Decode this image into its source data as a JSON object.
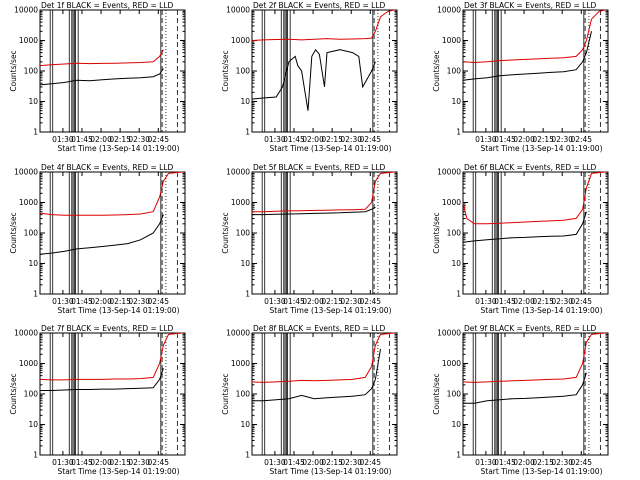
{
  "colors": {
    "events": "#000000",
    "lld": "#dd0000",
    "axes": "#000000",
    "background": "#ffffff"
  },
  "common": {
    "ylabel": "Counts/sec",
    "xlabel": "Start Time (13-Sep-14 01:19:00)",
    "x_range_minutes": [
      71,
      185
    ],
    "y_range": [
      1,
      10000
    ],
    "y_scale": "log",
    "x_ticks": [
      "01:30",
      "01:45",
      "02:00",
      "02:15",
      "02:30",
      "02:45"
    ],
    "y_ticks": [
      "1",
      "10",
      "100",
      "1000",
      "10000"
    ],
    "markers": {
      "solid": [
        79,
        81,
        94,
        96,
        97,
        98,
        99,
        101,
        166
      ],
      "dashed": [
        167,
        179
      ],
      "dash_dot": [
        170
      ]
    }
  },
  "chart_data": [
    {
      "type": "line",
      "title": "Det 1f BLACK = Events, RED = LLD",
      "series": [
        {
          "name": "Events",
          "color": "#000000",
          "values": [
            [
              71,
              35
            ],
            [
              80,
              38
            ],
            [
              90,
              42
            ],
            [
              100,
              50
            ],
            [
              110,
              48
            ],
            [
              120,
              52
            ],
            [
              130,
              55
            ],
            [
              140,
              58
            ],
            [
              150,
              60
            ],
            [
              160,
              65
            ],
            [
              165,
              80
            ],
            [
              168,
              120
            ]
          ]
        },
        {
          "name": "LLD",
          "color": "#dd0000",
          "values": [
            [
              71,
              150
            ],
            [
              80,
              160
            ],
            [
              90,
              170
            ],
            [
              100,
              180
            ],
            [
              110,
              175
            ],
            [
              120,
              178
            ],
            [
              130,
              180
            ],
            [
              140,
              185
            ],
            [
              150,
              190
            ],
            [
              160,
              200
            ],
            [
              165,
              300
            ],
            [
              168,
              500
            ]
          ]
        }
      ]
    },
    {
      "type": "line",
      "title": "Det 2f BLACK = Events, RED = LLD",
      "series": [
        {
          "name": "Events",
          "color": "#000000",
          "values": [
            [
              71,
              12
            ],
            [
              80,
              13
            ],
            [
              90,
              14
            ],
            [
              95,
              30
            ],
            [
              100,
              200
            ],
            [
              105,
              300
            ],
            [
              107,
              150
            ],
            [
              110,
              100
            ],
            [
              115,
              5
            ],
            [
              118,
              300
            ],
            [
              121,
              500
            ],
            [
              124,
              350
            ],
            [
              128,
              30
            ],
            [
              130,
              400
            ],
            [
              140,
              500
            ],
            [
              150,
              400
            ],
            [
              155,
              300
            ],
            [
              158,
              30
            ],
            [
              165,
              100
            ],
            [
              168,
              200
            ]
          ]
        },
        {
          "name": "LLD",
          "color": "#dd0000",
          "values": [
            [
              71,
              1000
            ],
            [
              80,
              1050
            ],
            [
              90,
              1080
            ],
            [
              100,
              1100
            ],
            [
              110,
              1050
            ],
            [
              120,
              1100
            ],
            [
              130,
              1150
            ],
            [
              140,
              1100
            ],
            [
              150,
              1120
            ],
            [
              160,
              1150
            ],
            [
              165,
              1200
            ],
            [
              168,
              2000
            ],
            [
              172,
              6000
            ],
            [
              178,
              9000
            ],
            [
              183,
              10000
            ]
          ]
        }
      ]
    },
    {
      "type": "line",
      "title": "Det 3f BLACK = Events, RED = LLD",
      "series": [
        {
          "name": "Events",
          "color": "#000000",
          "values": [
            [
              71,
              50
            ],
            [
              80,
              55
            ],
            [
              90,
              60
            ],
            [
              100,
              70
            ],
            [
              110,
              75
            ],
            [
              120,
              80
            ],
            [
              130,
              85
            ],
            [
              140,
              90
            ],
            [
              150,
              95
            ],
            [
              160,
              110
            ],
            [
              165,
              200
            ],
            [
              168,
              400
            ],
            [
              172,
              2000
            ]
          ]
        },
        {
          "name": "LLD",
          "color": "#dd0000",
          "values": [
            [
              71,
              200
            ],
            [
              80,
              190
            ],
            [
              90,
              200
            ],
            [
              100,
              220
            ],
            [
              110,
              230
            ],
            [
              120,
              240
            ],
            [
              130,
              250
            ],
            [
              140,
              260
            ],
            [
              150,
              270
            ],
            [
              160,
              300
            ],
            [
              165,
              500
            ],
            [
              168,
              1000
            ],
            [
              172,
              5000
            ],
            [
              178,
              9000
            ],
            [
              183,
              10000
            ]
          ]
        }
      ]
    },
    {
      "type": "line",
      "title": "Det 4f BLACK = Events, RED = LLD",
      "series": [
        {
          "name": "Events",
          "color": "#000000",
          "values": [
            [
              71,
              20
            ],
            [
              80,
              22
            ],
            [
              90,
              25
            ],
            [
              100,
              30
            ],
            [
              110,
              33
            ],
            [
              120,
              36
            ],
            [
              130,
              40
            ],
            [
              140,
              45
            ],
            [
              150,
              60
            ],
            [
              160,
              100
            ],
            [
              165,
              200
            ],
            [
              168,
              400
            ]
          ]
        },
        {
          "name": "LLD",
          "color": "#dd0000",
          "values": [
            [
              71,
              450
            ],
            [
              80,
              400
            ],
            [
              90,
              380
            ],
            [
              100,
              380
            ],
            [
              110,
              380
            ],
            [
              120,
              380
            ],
            [
              130,
              390
            ],
            [
              140,
              400
            ],
            [
              150,
              420
            ],
            [
              160,
              500
            ],
            [
              165,
              1500
            ],
            [
              168,
              5000
            ],
            [
              172,
              9000
            ],
            [
              183,
              10000
            ]
          ]
        }
      ]
    },
    {
      "type": "line",
      "title": "Det 5f BLACK = Events, RED = LLD",
      "series": [
        {
          "name": "Events",
          "color": "#000000",
          "values": [
            [
              71,
              400
            ],
            [
              80,
              400
            ],
            [
              90,
              410
            ],
            [
              100,
              420
            ],
            [
              110,
              430
            ],
            [
              120,
              440
            ],
            [
              130,
              450
            ],
            [
              140,
              460
            ],
            [
              150,
              480
            ],
            [
              160,
              500
            ],
            [
              165,
              600
            ],
            [
              168,
              700
            ]
          ]
        },
        {
          "name": "LLD",
          "color": "#dd0000",
          "values": [
            [
              71,
              500
            ],
            [
              80,
              500
            ],
            [
              90,
              520
            ],
            [
              100,
              530
            ],
            [
              110,
              540
            ],
            [
              120,
              550
            ],
            [
              130,
              560
            ],
            [
              140,
              570
            ],
            [
              150,
              580
            ],
            [
              160,
              600
            ],
            [
              165,
              1000
            ],
            [
              168,
              5000
            ],
            [
              172,
              9000
            ],
            [
              183,
              10000
            ]
          ]
        }
      ]
    },
    {
      "type": "line",
      "title": "Det 6f BLACK = Events, RED = LLD",
      "series": [
        {
          "name": "Events",
          "color": "#000000",
          "values": [
            [
              71,
              50
            ],
            [
              80,
              55
            ],
            [
              90,
              60
            ],
            [
              100,
              65
            ],
            [
              110,
              70
            ],
            [
              120,
              72
            ],
            [
              130,
              75
            ],
            [
              140,
              78
            ],
            [
              150,
              80
            ],
            [
              160,
              90
            ],
            [
              165,
              200
            ],
            [
              168,
              500
            ]
          ]
        },
        {
          "name": "LLD",
          "color": "#dd0000",
          "values": [
            [
              71,
              1000
            ],
            [
              74,
              300
            ],
            [
              80,
              200
            ],
            [
              90,
              200
            ],
            [
              100,
              210
            ],
            [
              110,
              220
            ],
            [
              120,
              230
            ],
            [
              130,
              240
            ],
            [
              140,
              250
            ],
            [
              150,
              260
            ],
            [
              160,
              300
            ],
            [
              165,
              600
            ],
            [
              168,
              3000
            ],
            [
              172,
              9000
            ],
            [
              183,
              10000
            ]
          ]
        }
      ]
    },
    {
      "type": "line",
      "title": "Det 7f BLACK = Events, RED = LLD",
      "series": [
        {
          "name": "Events",
          "color": "#000000",
          "values": [
            [
              71,
              130
            ],
            [
              80,
              130
            ],
            [
              90,
              135
            ],
            [
              100,
              140
            ],
            [
              110,
              140
            ],
            [
              120,
              145
            ],
            [
              130,
              145
            ],
            [
              140,
              150
            ],
            [
              150,
              155
            ],
            [
              160,
              160
            ],
            [
              165,
              300
            ],
            [
              168,
              700
            ]
          ]
        },
        {
          "name": "LLD",
          "color": "#dd0000",
          "values": [
            [
              71,
              300
            ],
            [
              80,
              290
            ],
            [
              90,
              290
            ],
            [
              100,
              300
            ],
            [
              110,
              300
            ],
            [
              120,
              300
            ],
            [
              130,
              310
            ],
            [
              140,
              310
            ],
            [
              150,
              320
            ],
            [
              160,
              350
            ],
            [
              165,
              1000
            ],
            [
              168,
              4000
            ],
            [
              172,
              9000
            ],
            [
              183,
              10000
            ]
          ]
        }
      ]
    },
    {
      "type": "line",
      "title": "Det 8f BLACK = Events, RED = LLD",
      "series": [
        {
          "name": "Events",
          "color": "#000000",
          "values": [
            [
              71,
              60
            ],
            [
              80,
              60
            ],
            [
              90,
              65
            ],
            [
              100,
              70
            ],
            [
              110,
              90
            ],
            [
              120,
              70
            ],
            [
              130,
              75
            ],
            [
              140,
              80
            ],
            [
              150,
              85
            ],
            [
              160,
              95
            ],
            [
              165,
              150
            ],
            [
              168,
              300
            ],
            [
              172,
              3000
            ]
          ]
        },
        {
          "name": "LLD",
          "color": "#dd0000",
          "values": [
            [
              71,
              250
            ],
            [
              80,
              240
            ],
            [
              90,
              250
            ],
            [
              100,
              260
            ],
            [
              110,
              280
            ],
            [
              120,
              270
            ],
            [
              130,
              280
            ],
            [
              140,
              290
            ],
            [
              150,
              300
            ],
            [
              160,
              350
            ],
            [
              165,
              800
            ],
            [
              168,
              4000
            ],
            [
              172,
              9000
            ],
            [
              183,
              10000
            ]
          ]
        }
      ]
    },
    {
      "type": "line",
      "title": "Det 9f BLACK = Events, RED = LLD",
      "series": [
        {
          "name": "Events",
          "color": "#000000",
          "values": [
            [
              71,
              50
            ],
            [
              80,
              50
            ],
            [
              90,
              60
            ],
            [
              100,
              65
            ],
            [
              110,
              70
            ],
            [
              120,
              72
            ],
            [
              130,
              75
            ],
            [
              140,
              80
            ],
            [
              150,
              85
            ],
            [
              160,
              95
            ],
            [
              165,
              200
            ],
            [
              168,
              500
            ]
          ]
        },
        {
          "name": "LLD",
          "color": "#dd0000",
          "values": [
            [
              71,
              250
            ],
            [
              80,
              240
            ],
            [
              90,
              250
            ],
            [
              100,
              260
            ],
            [
              110,
              270
            ],
            [
              120,
              280
            ],
            [
              130,
              290
            ],
            [
              140,
              300
            ],
            [
              150,
              310
            ],
            [
              160,
              350
            ],
            [
              165,
              1000
            ],
            [
              168,
              5000
            ],
            [
              172,
              9000
            ],
            [
              183,
              10000
            ]
          ]
        }
      ]
    }
  ]
}
